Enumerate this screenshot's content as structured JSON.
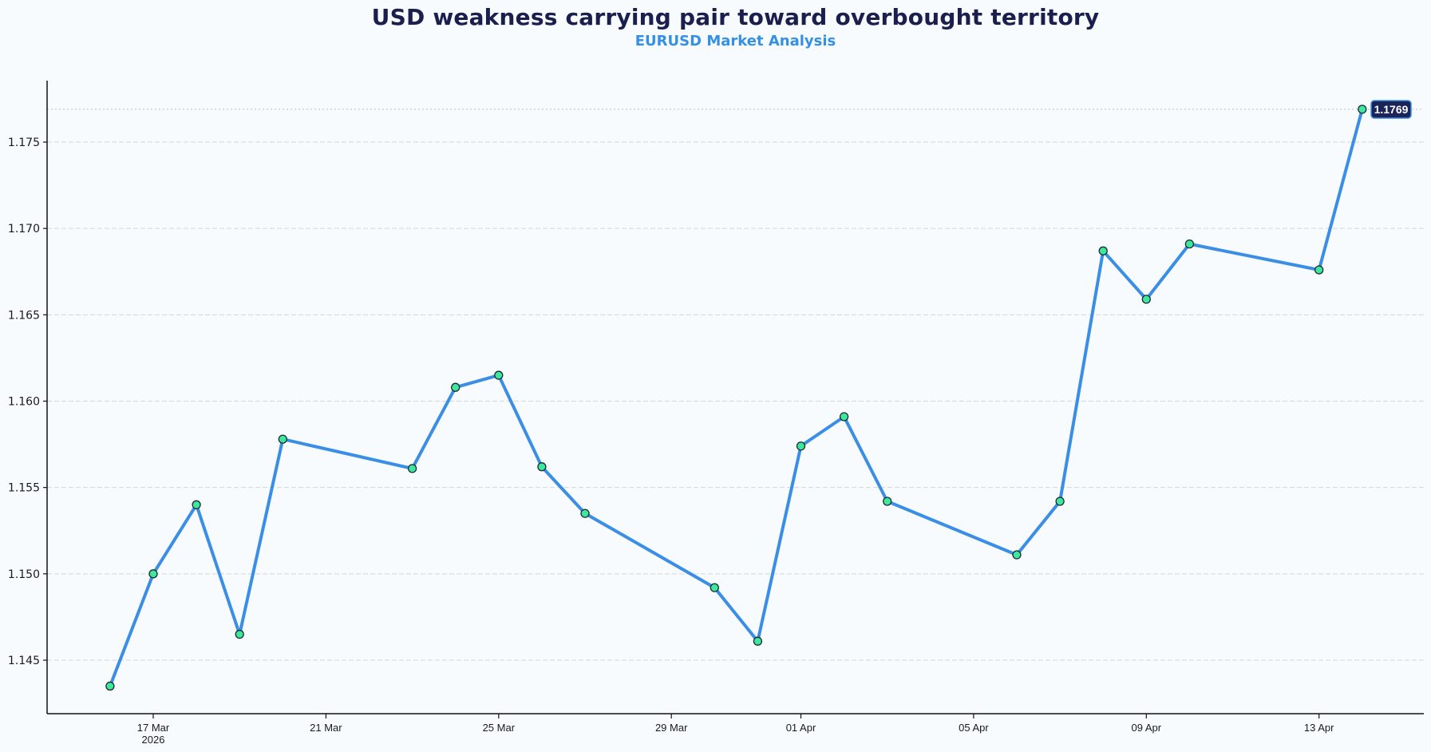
{
  "header": {
    "title": "USD weakness carrying pair toward overbought territory",
    "subtitle": "EURUSD Market Analysis"
  },
  "colors": {
    "background": "#f8fbfd",
    "title": "#1b1f4e",
    "subtitle": "#3390e4",
    "line": "#3a8ee6",
    "marker_fill": "#3de89a",
    "marker_edge": "#1b2a3a",
    "label_bg": "#1b2459",
    "label_border": "#3a8ee6",
    "grid": "#d3d6da"
  },
  "last_value_label": "1.1769",
  "chart_data": {
    "type": "line",
    "title": "USD weakness carrying pair toward overbought territory",
    "subtitle": "EURUSD Market Analysis",
    "xlabel": "",
    "ylabel": "",
    "x": [
      "2026-03-16",
      "2026-03-17",
      "2026-03-18",
      "2026-03-19",
      "2026-03-20",
      "2026-03-23",
      "2026-03-24",
      "2026-03-25",
      "2026-03-26",
      "2026-03-27",
      "2026-03-30",
      "2026-03-31",
      "2026-04-01",
      "2026-04-02",
      "2026-04-03",
      "2026-04-06",
      "2026-04-07",
      "2026-04-08",
      "2026-04-09",
      "2026-04-10",
      "2026-04-13",
      "2026-04-14"
    ],
    "series": [
      {
        "name": "EURUSD",
        "values": [
          1.1435,
          1.15,
          1.154,
          1.1465,
          1.1578,
          1.1561,
          1.1608,
          1.1615,
          1.1562,
          1.1535,
          1.1492,
          1.1461,
          1.1574,
          1.1591,
          1.1542,
          1.1511,
          1.1542,
          1.1687,
          1.1659,
          1.1691,
          1.1676,
          1.1769
        ]
      }
    ],
    "yticks": [
      "1.145",
      "1.150",
      "1.155",
      "1.160",
      "1.165",
      "1.170",
      "1.175"
    ],
    "xticks": [
      {
        "label": "17 Mar",
        "sublabel": "2026",
        "date": "2026-03-17"
      },
      {
        "label": "21 Mar",
        "sublabel": "",
        "date": "2026-03-21"
      },
      {
        "label": "25 Mar",
        "sublabel": "",
        "date": "2026-03-25"
      },
      {
        "label": "29 Mar",
        "sublabel": "",
        "date": "2026-03-29"
      },
      {
        "label": "01 Apr",
        "sublabel": "",
        "date": "2026-04-01"
      },
      {
        "label": "05 Apr",
        "sublabel": "",
        "date": "2026-04-05"
      },
      {
        "label": "09 Apr",
        "sublabel": "",
        "date": "2026-04-09"
      },
      {
        "label": "13 Apr",
        "sublabel": "",
        "date": "2026-04-13"
      }
    ],
    "ylim": [
      1.1422,
      1.1781
    ],
    "reference_line": {
      "value": 1.1769,
      "style": "dotted",
      "label": "1.1769"
    },
    "grid": {
      "y": true,
      "x": false,
      "style": "dashed"
    },
    "legend": null
  }
}
